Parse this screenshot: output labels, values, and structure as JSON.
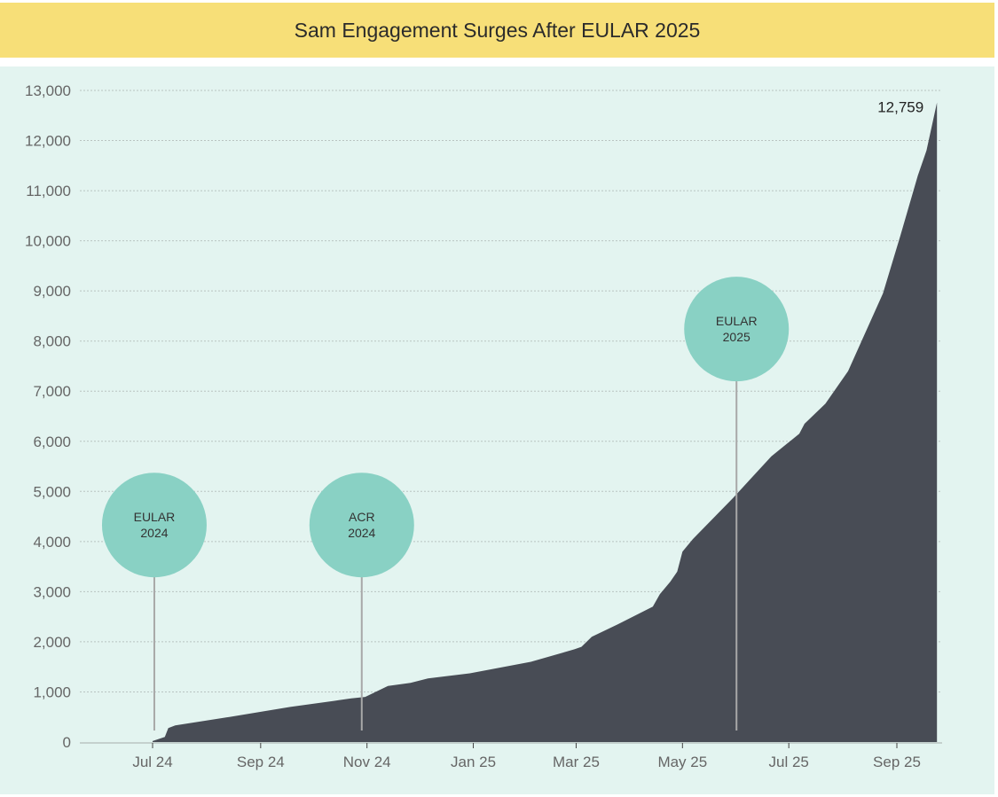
{
  "chart_data": {
    "type": "area",
    "title": "Sam Engagement Surges After EULAR 2025",
    "xlabel": "",
    "ylabel": "",
    "ylim": [
      0,
      13000
    ],
    "yticks": [
      0,
      1000,
      2000,
      3000,
      4000,
      5000,
      6000,
      7000,
      8000,
      9000,
      10000,
      11000,
      12000,
      13000
    ],
    "ytick_labels": [
      "0",
      "1,000",
      "2,000",
      "3,000",
      "4,000",
      "5,000",
      "6,000",
      "7,000",
      "8,000",
      "9,000",
      "10,000",
      "11,000",
      "12,000",
      "13,000"
    ],
    "xticks": [
      "2024-07-01",
      "2024-09-01",
      "2024-11-01",
      "2025-01-01",
      "2025-03-01",
      "2025-05-01",
      "2025-07-01",
      "2025-09-01"
    ],
    "xtick_labels": [
      "Jul 24",
      "Sep 24",
      "Nov 24",
      "Jan 25",
      "Mar 25",
      "May 25",
      "Jul 25",
      "Sep 25"
    ],
    "grid": "horizontal dotted",
    "colors": {
      "area": "#484c55",
      "background": "#e3f4f0",
      "banner": "#f7df78",
      "annotation": "#89d1c4",
      "stem": "#a8a8a8"
    },
    "x": [
      "2024-07-01",
      "2024-07-08",
      "2024-07-10",
      "2024-07-14",
      "2024-08-14",
      "2024-09-18",
      "2024-10-13",
      "2024-10-23",
      "2024-10-31",
      "2024-11-13",
      "2024-11-26",
      "2024-12-06",
      "2024-12-30",
      "2025-02-03",
      "2025-02-28",
      "2025-03-04",
      "2025-03-10",
      "2025-03-25",
      "2025-04-14",
      "2025-04-18",
      "2025-04-24",
      "2025-04-28",
      "2025-05-01",
      "2025-05-07",
      "2025-05-30",
      "2025-06-09",
      "2025-06-21",
      "2025-07-07",
      "2025-07-10",
      "2025-07-22",
      "2025-08-04",
      "2025-08-24",
      "2025-09-03",
      "2025-09-13",
      "2025-09-18",
      "2025-09-24"
    ],
    "values": [
      20,
      100,
      280,
      330,
      500,
      700,
      820,
      870,
      900,
      1120,
      1180,
      1270,
      1370,
      1600,
      1850,
      1900,
      2100,
      2350,
      2700,
      2950,
      3200,
      3400,
      3800,
      4050,
      4870,
      5250,
      5700,
      6150,
      6350,
      6750,
      7400,
      8950,
      10100,
      11300,
      11800,
      12759
    ],
    "end_label": "12,759",
    "annotations": [
      {
        "line1": "EULAR",
        "line2": "2024",
        "date": "2024-07-02",
        "marker_value": 4330
      },
      {
        "line1": "ACR",
        "line2": "2024",
        "date": "2024-10-29",
        "marker_value": 4330
      },
      {
        "line1": "EULAR",
        "line2": "2025",
        "date": "2025-06-01",
        "marker_value": 8240
      }
    ]
  }
}
